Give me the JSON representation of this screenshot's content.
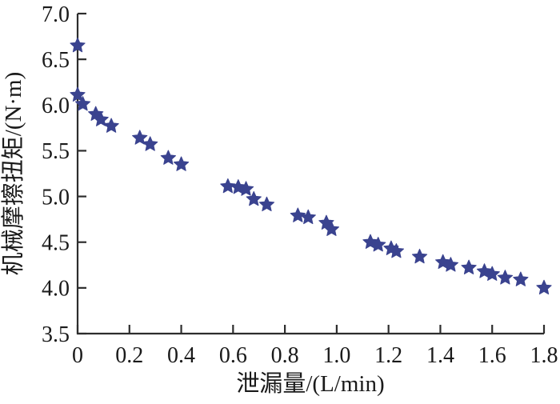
{
  "chart_data": {
    "type": "scatter",
    "title": "",
    "xlabel": "泄漏量/(L/min)",
    "ylabel": "机械摩擦扭矩/(N·m)",
    "xlim": [
      0,
      1.8
    ],
    "ylim": [
      3.5,
      7.0
    ],
    "xticks": [
      "0",
      "0.2",
      "0.4",
      "0.6",
      "0.8",
      "1.0",
      "1.2",
      "1.4",
      "1.6",
      "1.8"
    ],
    "yticks": [
      "3.5",
      "4.0",
      "4.5",
      "5.0",
      "5.5",
      "6.0",
      "6.5",
      "7.0"
    ],
    "grid": false,
    "legend_position": "none",
    "marker": "star",
    "marker_color": "#3A438F",
    "axis_color": "#2D2D2D",
    "text_color": "#1A1A1A",
    "points": [
      [
        0.0,
        6.65
      ],
      [
        0.0,
        6.11
      ],
      [
        0.02,
        6.01
      ],
      [
        0.07,
        5.9
      ],
      [
        0.09,
        5.84
      ],
      [
        0.13,
        5.77
      ],
      [
        0.24,
        5.64
      ],
      [
        0.28,
        5.57
      ],
      [
        0.35,
        5.42
      ],
      [
        0.4,
        5.35
      ],
      [
        0.58,
        5.11
      ],
      [
        0.62,
        5.1
      ],
      [
        0.65,
        5.08
      ],
      [
        0.68,
        4.97
      ],
      [
        0.73,
        4.91
      ],
      [
        0.85,
        4.79
      ],
      [
        0.89,
        4.77
      ],
      [
        0.96,
        4.71
      ],
      [
        0.98,
        4.64
      ],
      [
        1.13,
        4.5
      ],
      [
        1.16,
        4.47
      ],
      [
        1.21,
        4.43
      ],
      [
        1.23,
        4.4
      ],
      [
        1.32,
        4.34
      ],
      [
        1.41,
        4.28
      ],
      [
        1.44,
        4.25
      ],
      [
        1.51,
        4.22
      ],
      [
        1.57,
        4.18
      ],
      [
        1.6,
        4.15
      ],
      [
        1.65,
        4.11
      ],
      [
        1.71,
        4.09
      ],
      [
        1.8,
        4.0
      ]
    ]
  }
}
